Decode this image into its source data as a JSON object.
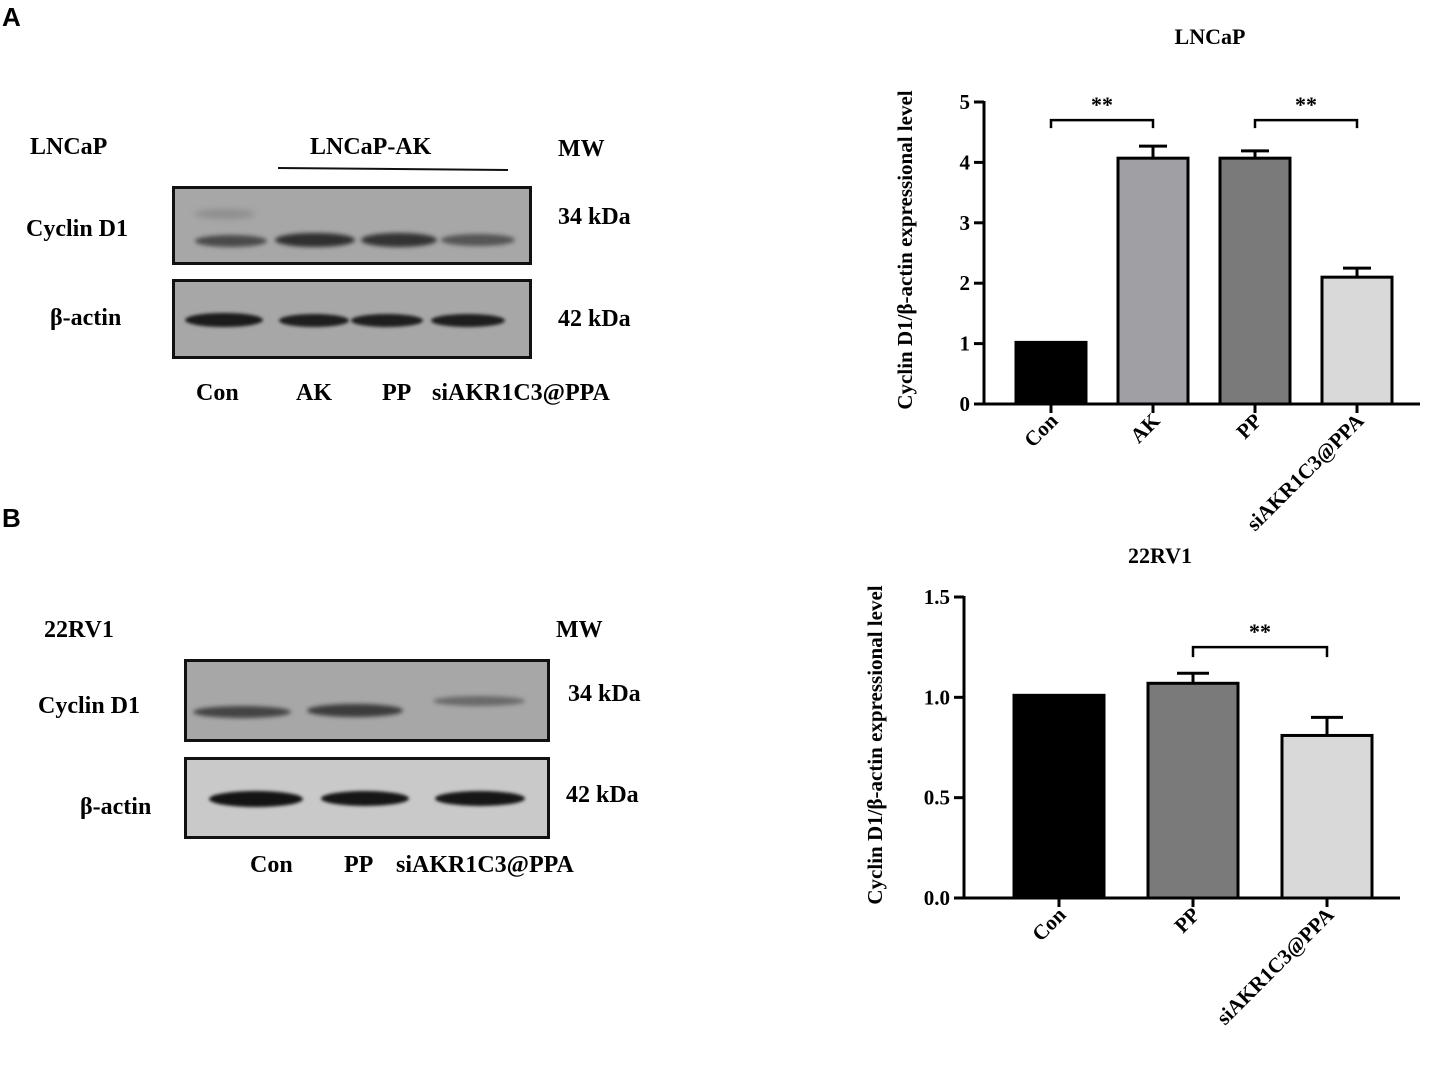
{
  "panels": {
    "a": {
      "letter": "A",
      "blot": {
        "cell_label": "LNCaP",
        "group_label": "LNCaP-AK",
        "mw_label": "MW",
        "rows": [
          {
            "name": "Cyclin D1",
            "mw": "34 kDa"
          },
          {
            "name": "β-actin",
            "mw": "42 kDa"
          }
        ],
        "lanes": [
          "Con",
          "AK",
          "PP",
          "siAKR1C3@PPA"
        ]
      }
    },
    "b": {
      "letter": "B",
      "blot": {
        "cell_label": "22RV1",
        "mw_label": "MW",
        "rows": [
          {
            "name": "Cyclin D1",
            "mw": "34 kDa"
          },
          {
            "name": "β-actin",
            "mw": "42 kDa"
          }
        ],
        "lanes": [
          "Con",
          "PP",
          "siAKR1C3@PPA"
        ]
      }
    }
  },
  "chart_data": [
    {
      "type": "bar",
      "title": "LNCaP",
      "ylabel": "Cyclin D1/β-actin expressional level",
      "xlabel": "",
      "categories": [
        "Con",
        "AK",
        "PP",
        "siAKR1C3@PPA"
      ],
      "values": [
        1.02,
        4.07,
        4.07,
        2.1
      ],
      "errors": [
        0,
        0.2,
        0.12,
        0.15
      ],
      "colors": [
        "#000000",
        "#a0a0a4",
        "#7a7a7a",
        "#d9d9d9"
      ],
      "ylim": [
        0,
        5
      ],
      "yticks": [
        "0",
        "1",
        "2",
        "3",
        "4",
        "5"
      ],
      "ytick_values": [
        0,
        1,
        2,
        3,
        4,
        5
      ],
      "significance": [
        {
          "from": 0,
          "to": 1,
          "label": "**",
          "level": 4.7
        },
        {
          "from": 2,
          "to": 3,
          "label": "**",
          "level": 4.7
        }
      ],
      "grid": false
    },
    {
      "type": "bar",
      "title": "22RV1",
      "ylabel": "Cyclin D1/β-actin expressional level",
      "xlabel": "",
      "categories": [
        "Con",
        "PP",
        "siAKR1C3@PPA"
      ],
      "values": [
        1.01,
        1.07,
        0.81
      ],
      "errors": [
        0,
        0.05,
        0.09
      ],
      "colors": [
        "#000000",
        "#7a7a7a",
        "#d9d9d9"
      ],
      "ylim": [
        0,
        1.5
      ],
      "yticks": [
        "0.0",
        "0.5",
        "1.0",
        "1.5"
      ],
      "ytick_values": [
        0,
        0.5,
        1.0,
        1.5
      ],
      "significance": [
        {
          "from": 1,
          "to": 2,
          "label": "**",
          "level": 1.25
        }
      ],
      "grid": false
    }
  ]
}
